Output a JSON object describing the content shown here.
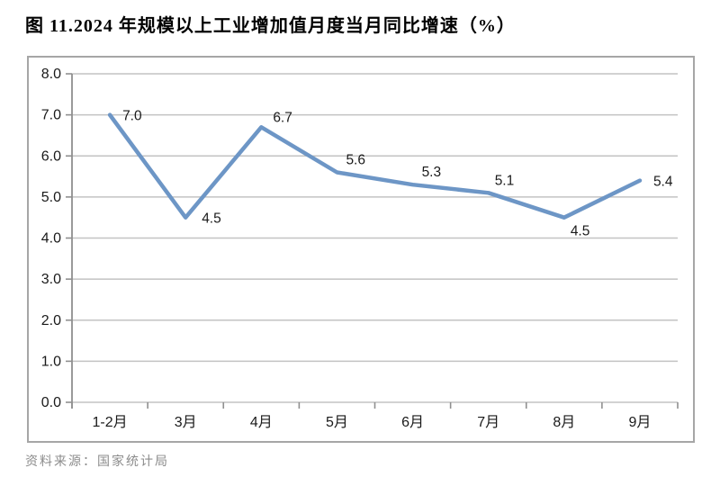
{
  "page": {
    "title": "图 11.2024 年规模以上工业增加值月度当月同比增速（%）",
    "source_note": "资料来源：国家统计局"
  },
  "chart_data": {
    "type": "line",
    "title": "图 11.2024 年规模以上工业增加值月度当月同比增速（%）",
    "categories": [
      "1-2月",
      "3月",
      "4月",
      "5月",
      "6月",
      "7月",
      "8月",
      "9月"
    ],
    "values": [
      7.0,
      4.5,
      6.7,
      5.6,
      5.3,
      5.1,
      4.5,
      5.4
    ],
    "data_labels": [
      "7.0",
      "4.5",
      "6.7",
      "5.6",
      "5.3",
      "5.1",
      "4.5",
      "5.4"
    ],
    "xlabel": "",
    "ylabel": "",
    "ylim": [
      0,
      8
    ],
    "ytick_step": 1,
    "ytick_decimals": 1,
    "grid": true,
    "legend": "none",
    "source": "资料来源：国家统计局",
    "colors": {
      "line": "#6D96C6",
      "grid": "#C3C3C3",
      "axis": "#8F8F8F",
      "tick_label": "#1A1A1A",
      "data_label": "#1A1A1A"
    }
  }
}
